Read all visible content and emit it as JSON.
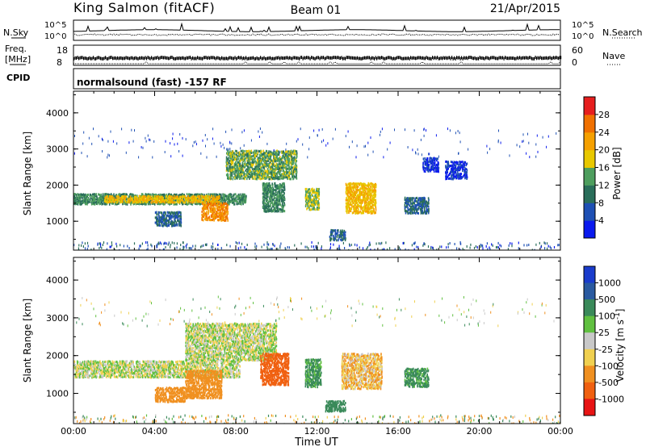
{
  "header": {
    "station": "King Salmon (fitACF)",
    "beam": "Beam 01",
    "date": "21/Apr/2015"
  },
  "top_panels": {
    "noise": {
      "left_label": "N.Sky",
      "right_label": "N.Search",
      "tick_top": "10^5",
      "tick_bottom": "10^0"
    },
    "freq": {
      "left_label_1": "Freq.",
      "left_label_2": "[MHz]",
      "left_ticks": [
        "18",
        "8"
      ],
      "right_label": "Nave",
      "right_ticks": [
        "60",
        "0"
      ]
    },
    "cpid": {
      "label": "CPID",
      "program": "normalsound (fast) -157 RF"
    }
  },
  "chart_data": [
    {
      "type": "heatmap",
      "title": "",
      "xlabel": "Time UT",
      "ylabel": "Slant Range [km]",
      "xlim": [
        0,
        24
      ],
      "ylim": [
        200,
        4600
      ],
      "x_ticks": [
        "00:00",
        "04:00",
        "08:00",
        "12:00",
        "16:00",
        "20:00",
        "00:00"
      ],
      "y_ticks": [
        "1000",
        "2000",
        "3000",
        "4000"
      ],
      "colorbar": {
        "label": "Power [dB]",
        "ticks": [
          "4",
          "8",
          "12",
          "16",
          "20",
          "24",
          "28"
        ],
        "colors": [
          "#0a1aee",
          "#1e50b4",
          "#2a6e5a",
          "#4e9e5e",
          "#e8c800",
          "#f5a000",
          "#f07000",
          "#e61e1e"
        ]
      },
      "echo_regions": [
        {
          "t_start": 0.0,
          "t_end": 8.5,
          "r_start": 1500,
          "r_end": 1800,
          "value": 12
        },
        {
          "t_start": 1.5,
          "t_end": 7.2,
          "r_start": 1550,
          "r_end": 1750,
          "value": 20
        },
        {
          "t_start": 7.5,
          "t_end": 11.0,
          "r_start": 2200,
          "r_end": 3000,
          "value": 14
        },
        {
          "t_start": 4.0,
          "t_end": 5.3,
          "r_start": 900,
          "r_end": 1300,
          "value": 8
        },
        {
          "t_start": 6.3,
          "t_end": 7.6,
          "r_start": 1050,
          "r_end": 1550,
          "value": 24
        },
        {
          "t_start": 9.3,
          "t_end": 10.4,
          "r_start": 1300,
          "r_end": 2100,
          "value": 12
        },
        {
          "t_start": 11.4,
          "t_end": 12.1,
          "r_start": 1350,
          "r_end": 1950,
          "value": 16
        },
        {
          "t_start": 12.6,
          "t_end": 13.4,
          "r_start": 500,
          "r_end": 800,
          "value": 8
        },
        {
          "t_start": 13.4,
          "t_end": 14.9,
          "r_start": 1250,
          "r_end": 2100,
          "value": 20
        },
        {
          "t_start": 16.3,
          "t_end": 17.5,
          "r_start": 1250,
          "r_end": 1700,
          "value": 8
        },
        {
          "t_start": 17.2,
          "t_end": 18.0,
          "r_start": 2400,
          "r_end": 2800,
          "value": 4
        },
        {
          "t_start": 18.3,
          "t_end": 19.4,
          "r_start": 2200,
          "r_end": 2700,
          "value": 4
        }
      ]
    },
    {
      "type": "heatmap",
      "title": "",
      "xlabel": "Time UT",
      "ylabel": "Slant Range [km]",
      "xlim": [
        0,
        24
      ],
      "ylim": [
        200,
        4600
      ],
      "x_ticks": [
        "00:00",
        "04:00",
        "08:00",
        "12:00",
        "16:00",
        "20:00",
        "00:00"
      ],
      "y_ticks": [
        "1000",
        "2000",
        "3000",
        "4000"
      ],
      "colorbar": {
        "label": "Velocity [m s-1]",
        "label_main": "Velocity [m s",
        "label_exp": "-1",
        "label_end": "]",
        "ticks": [
          "1000",
          "500",
          "100",
          "25",
          "-25",
          "-100",
          "-500",
          "-1000"
        ],
        "colors": [
          "#1a3ccc",
          "#2a5aa0",
          "#3a8a5a",
          "#60c040",
          "#c8c8c8",
          "#f0d050",
          "#f09020",
          "#f06010",
          "#e81414"
        ]
      },
      "echo_regions": [
        {
          "t_start": 0.0,
          "t_end": 8.2,
          "r_start": 1450,
          "r_end": 1900,
          "value": 0
        },
        {
          "t_start": 5.5,
          "t_end": 10.0,
          "r_start": 1900,
          "r_end": 2900,
          "value": 0
        },
        {
          "t_start": 4.0,
          "t_end": 5.5,
          "r_start": 800,
          "r_end": 1200,
          "value": -300
        },
        {
          "t_start": 5.5,
          "t_end": 7.3,
          "r_start": 900,
          "r_end": 1650,
          "value": -400
        },
        {
          "t_start": 9.2,
          "t_end": 10.6,
          "r_start": 1250,
          "r_end": 2100,
          "value": -600
        },
        {
          "t_start": 11.4,
          "t_end": 12.2,
          "r_start": 1200,
          "r_end": 1950,
          "value": 150
        },
        {
          "t_start": 12.4,
          "t_end": 13.4,
          "r_start": 550,
          "r_end": 850,
          "value": 200
        },
        {
          "t_start": 13.2,
          "t_end": 15.2,
          "r_start": 1150,
          "r_end": 2100,
          "value": -80
        },
        {
          "t_start": 16.3,
          "t_end": 17.5,
          "r_start": 1200,
          "r_end": 1700,
          "value": 150
        }
      ]
    }
  ]
}
